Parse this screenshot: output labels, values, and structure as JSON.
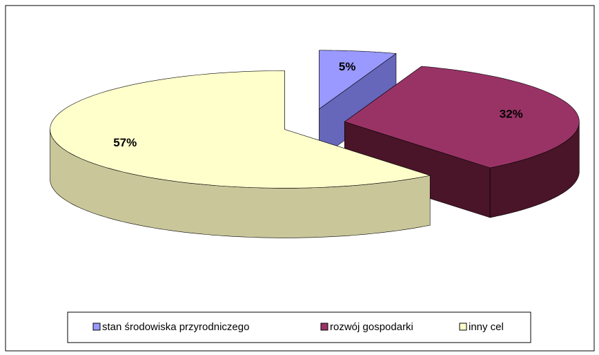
{
  "chart_data": {
    "type": "pie",
    "categories": [
      "stan środowiska  przyrodniczego",
      "rozwój gospodarki",
      "inny cel"
    ],
    "values": [
      5,
      32,
      57
    ],
    "value_labels": [
      "5%",
      "32%",
      "57%"
    ],
    "colors": [
      "#9999ff",
      "#993366",
      "#ffffcc"
    ],
    "side_colors": [
      "#6666bb",
      "#4a1528",
      "#c9c79a"
    ],
    "legend": "bottom"
  }
}
